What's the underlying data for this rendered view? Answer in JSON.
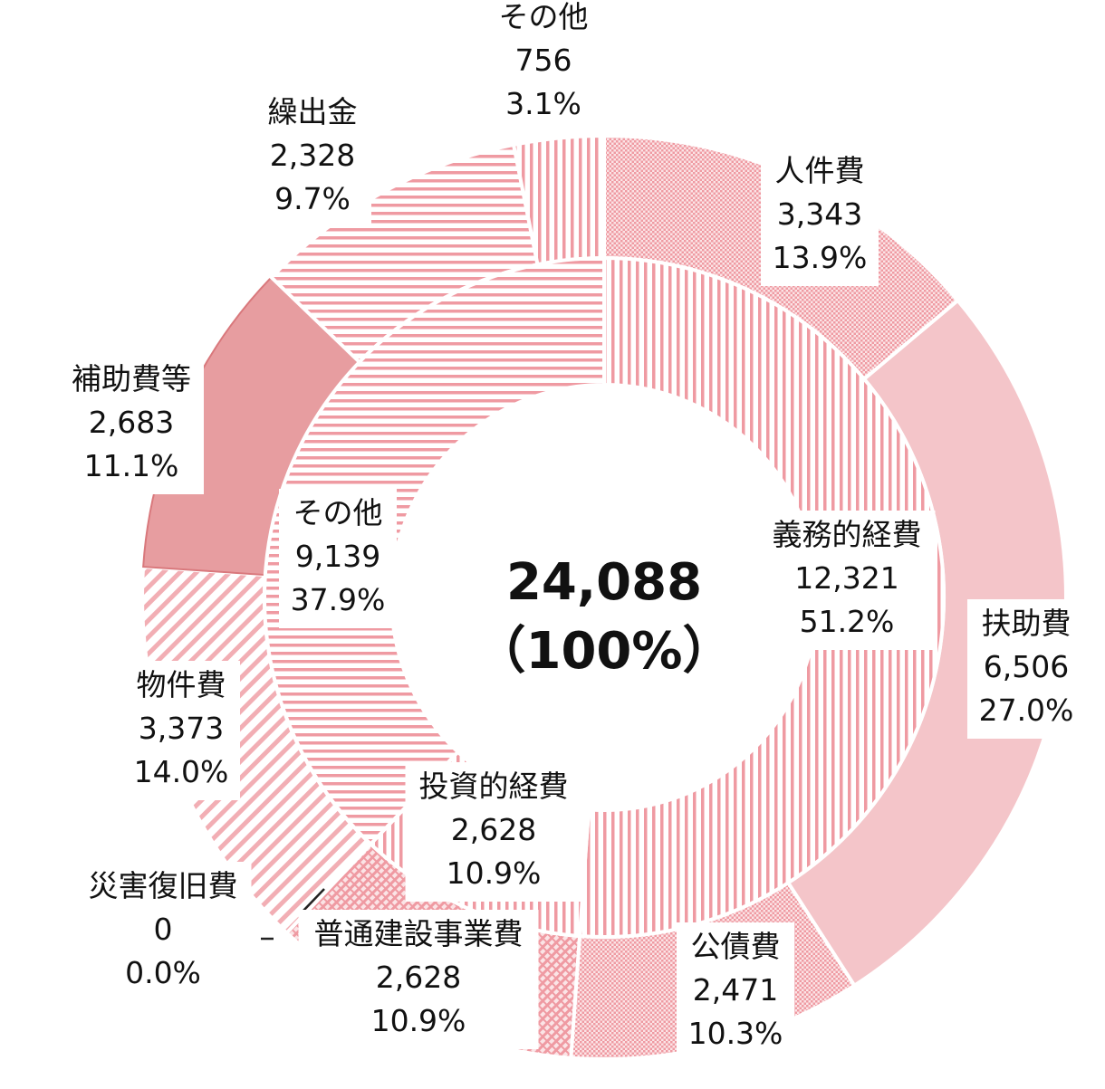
{
  "chart_data": {
    "type": "pie",
    "subtype": "nested-donut",
    "title": "",
    "center": {
      "value": "24,088",
      "share": "（100%）"
    },
    "total": 24088,
    "inner_ring": [
      {
        "name": "義務的経費",
        "value": 12321,
        "value_label": "12,321",
        "percent_label": "51.2%",
        "pattern": "vertical-stripes"
      },
      {
        "name": "投資的経費",
        "value": 2628,
        "value_label": "2,628",
        "percent_label": "10.9%",
        "pattern": "vertical-stripes"
      },
      {
        "name": "その他",
        "value": 9139,
        "value_label": "9,139",
        "percent_label": "37.9%",
        "pattern": "horizontal-stripes"
      }
    ],
    "outer_ring": [
      {
        "name": "人件費",
        "value": 3343,
        "value_label": "3,343",
        "percent_label": "13.9%",
        "pattern": "dots"
      },
      {
        "name": "扶助費",
        "value": 6506,
        "value_label": "6,506",
        "percent_label": "27.0%",
        "pattern": "solid-light"
      },
      {
        "name": "公債費",
        "value": 2471,
        "value_label": "2,471",
        "percent_label": "10.3%",
        "pattern": "dots"
      },
      {
        "name": "普通建設事業費",
        "value": 2628,
        "value_label": "2,628",
        "percent_label": "10.9%",
        "pattern": "diagonal-cross"
      },
      {
        "name": "災害復旧費",
        "value": 0,
        "value_label": "0",
        "percent_label": "0.0%",
        "pattern": "none"
      },
      {
        "name": "物件費",
        "value": 3373,
        "value_label": "3,373",
        "percent_label": "14.0%",
        "pattern": "diagonal-stripes"
      },
      {
        "name": "補助費等",
        "value": 2683,
        "value_label": "2,683",
        "percent_label": "11.1%",
        "pattern": "solid-dark"
      },
      {
        "name": "繰出金",
        "value": 2328,
        "value_label": "2,328",
        "percent_label": "9.7%",
        "pattern": "horizontal-stripes"
      },
      {
        "name": "その他",
        "value": 756,
        "value_label": "756",
        "percent_label": "3.1%",
        "pattern": "vertical-stripes"
      }
    ],
    "colors": {
      "light": "#f4c5c9",
      "stripe": "#ef9aa2",
      "dark": "#e79da0",
      "dark_edge": "#d9787c",
      "text": "#111111",
      "leader": "#222222"
    }
  }
}
